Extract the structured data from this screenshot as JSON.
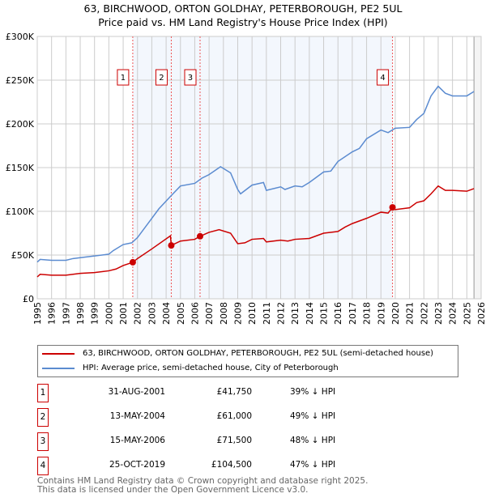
{
  "title": "63, BIRCHWOOD, ORTON GOLDHAY, PETERBOROUGH, PE2 5UL",
  "subtitle": "Price paid vs. HM Land Registry's House Price Index (HPI)",
  "chart_data": {
    "type": "line",
    "ylim": [
      0,
      300000
    ],
    "xlim": [
      1995,
      2026
    ],
    "yticks": [
      {
        "v": 0,
        "label": "£0"
      },
      {
        "v": 50000,
        "label": "£50K"
      },
      {
        "v": 100000,
        "label": "£100K"
      },
      {
        "v": 150000,
        "label": "£150K"
      },
      {
        "v": 200000,
        "label": "£200K"
      },
      {
        "v": 250000,
        "label": "£250K"
      },
      {
        "v": 300000,
        "label": "£300K"
      }
    ],
    "xticks": [
      "1995",
      "1996",
      "1997",
      "1998",
      "1999",
      "2000",
      "2001",
      "2002",
      "2003",
      "2004",
      "2005",
      "2006",
      "2007",
      "2008",
      "2009",
      "2010",
      "2011",
      "2012",
      "2013",
      "2014",
      "2015",
      "2016",
      "2017",
      "2018",
      "2019",
      "2020",
      "2021",
      "2022",
      "2023",
      "2024",
      "2025",
      "2026"
    ],
    "series": [
      {
        "name": "63, BIRCHWOOD, ORTON GOLDHAY, PETERBOROUGH, PE2 5UL (semi-detached house)",
        "color": "#cc0000",
        "points": [
          [
            1995,
            25
          ],
          [
            1995.2,
            28
          ],
          [
            1996,
            27
          ],
          [
            1997,
            27
          ],
          [
            1998,
            29
          ],
          [
            1999,
            30
          ],
          [
            2000,
            32
          ],
          [
            2000.5,
            34
          ],
          [
            2001,
            38
          ],
          [
            2001.67,
            41.75
          ],
          [
            2002,
            46
          ],
          [
            2003,
            57
          ],
          [
            2004.3,
            72
          ],
          [
            2004.36,
            61
          ],
          [
            2005,
            66
          ],
          [
            2006,
            68
          ],
          [
            2006.37,
            71.5
          ],
          [
            2007,
            76
          ],
          [
            2007.7,
            79
          ],
          [
            2008.5,
            75
          ],
          [
            2009,
            63
          ],
          [
            2009.5,
            64
          ],
          [
            2010,
            68
          ],
          [
            2010.8,
            69
          ],
          [
            2011,
            65
          ],
          [
            2012,
            67
          ],
          [
            2012.5,
            66
          ],
          [
            2013,
            68
          ],
          [
            2014,
            69
          ],
          [
            2014.5,
            72
          ],
          [
            2015,
            75
          ],
          [
            2016,
            77
          ],
          [
            2016.5,
            82
          ],
          [
            2017,
            86
          ],
          [
            2017.5,
            89
          ],
          [
            2018,
            92
          ],
          [
            2019,
            99
          ],
          [
            2019.5,
            98
          ],
          [
            2019.81,
            104.5
          ],
          [
            2020,
            102
          ],
          [
            2021,
            104
          ],
          [
            2021.5,
            110
          ],
          [
            2022,
            112
          ],
          [
            2022.5,
            120
          ],
          [
            2023,
            129
          ],
          [
            2023.5,
            124
          ],
          [
            2024,
            124
          ],
          [
            2025,
            123
          ],
          [
            2025.5,
            126
          ]
        ]
      },
      {
        "name": "HPI: Average price, semi-detached house, City of Peterborough",
        "color": "#5b8bd0",
        "points": [
          [
            1995,
            42
          ],
          [
            1995.2,
            45
          ],
          [
            1996,
            44
          ],
          [
            1997,
            44
          ],
          [
            1997.5,
            46
          ],
          [
            1998,
            47
          ],
          [
            1999,
            49
          ],
          [
            2000,
            51
          ],
          [
            2000.3,
            55
          ],
          [
            2001,
            62
          ],
          [
            2001.6,
            64
          ],
          [
            2002,
            70
          ],
          [
            2003,
            92
          ],
          [
            2003.5,
            103
          ],
          [
            2004.3,
            117
          ],
          [
            2005,
            129
          ],
          [
            2006,
            132
          ],
          [
            2006.5,
            138
          ],
          [
            2007,
            142
          ],
          [
            2007.8,
            151
          ],
          [
            2008.5,
            144
          ],
          [
            2009,
            125
          ],
          [
            2009.2,
            120
          ],
          [
            2010,
            130
          ],
          [
            2010.8,
            133
          ],
          [
            2011,
            124
          ],
          [
            2012,
            128
          ],
          [
            2012.3,
            125
          ],
          [
            2013,
            129
          ],
          [
            2013.5,
            128
          ],
          [
            2014,
            133
          ],
          [
            2014.5,
            139
          ],
          [
            2015,
            145
          ],
          [
            2015.5,
            146
          ],
          [
            2016,
            157
          ],
          [
            2017,
            168
          ],
          [
            2017.5,
            172
          ],
          [
            2018,
            183
          ],
          [
            2019,
            193
          ],
          [
            2019.5,
            190
          ],
          [
            2020,
            195
          ],
          [
            2021,
            196
          ],
          [
            2021.5,
            205
          ],
          [
            2022,
            212
          ],
          [
            2022.5,
            232
          ],
          [
            2023,
            243
          ],
          [
            2023.5,
            235
          ],
          [
            2024,
            232
          ],
          [
            2025,
            232
          ],
          [
            2025.5,
            237
          ]
        ]
      }
    ],
    "sales": [
      {
        "n": "1",
        "x": 2001.67,
        "date": "31-AUG-2001",
        "price": "£41,750",
        "value": 41750,
        "hpi": "39% ↓ HPI"
      },
      {
        "n": "2",
        "x": 2004.36,
        "date": "13-MAY-2004",
        "price": "£61,000",
        "value": 61000,
        "hpi": "49% ↓ HPI"
      },
      {
        "n": "3",
        "x": 2006.37,
        "date": "15-MAY-2006",
        "price": "£71,500",
        "value": 71500,
        "hpi": "48% ↓ HPI"
      },
      {
        "n": "4",
        "x": 2019.81,
        "date": "25-OCT-2019",
        "price": "£104,500",
        "value": 104500,
        "hpi": "47% ↓ HPI"
      }
    ]
  },
  "footer": [
    "Contains HM Land Registry data © Crown copyright and database right 2025.",
    "This data is licensed under the Open Government Licence v3.0."
  ]
}
